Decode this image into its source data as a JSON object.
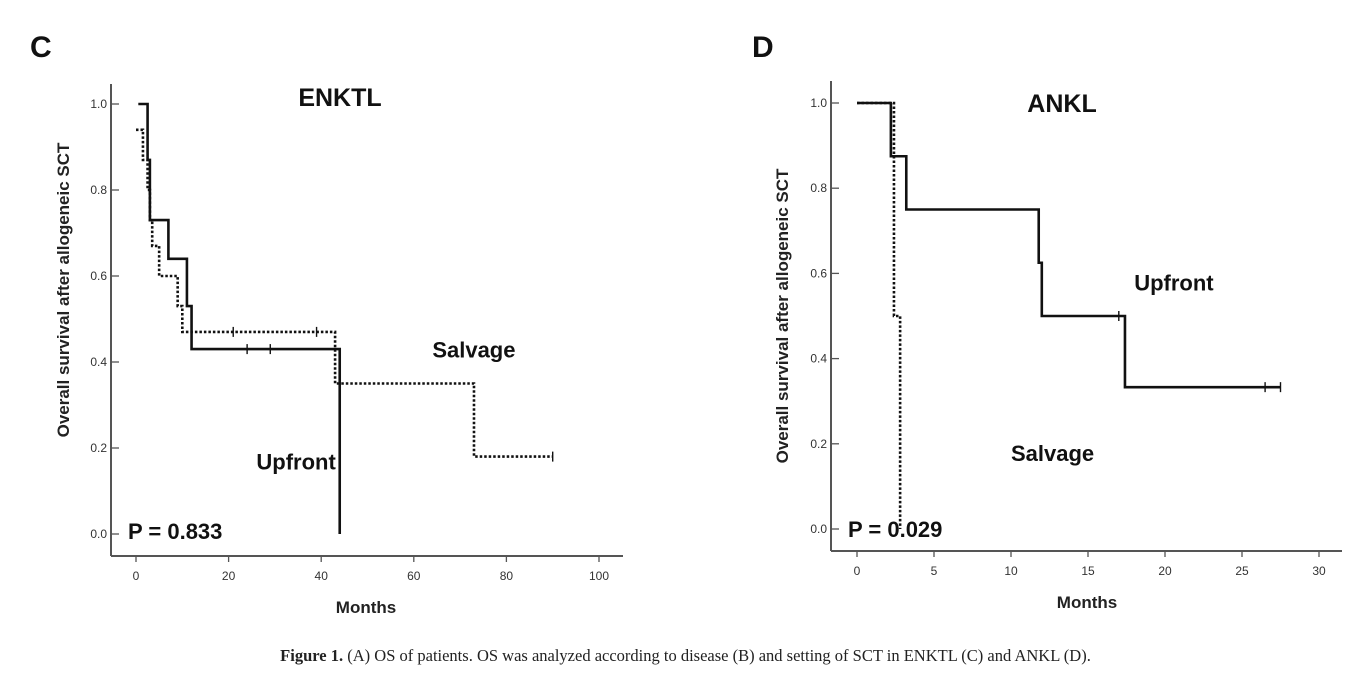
{
  "chart_data": [
    {
      "panel": "C",
      "type": "line",
      "title": "ENKTL",
      "xlabel": "Months",
      "ylabel": "Overall survival after allogeneic SCT",
      "xlim": [
        0,
        100
      ],
      "ylim": [
        0,
        1.0
      ],
      "xticks": [
        0,
        20,
        40,
        60,
        80,
        100
      ],
      "yticks": [
        0.0,
        0.2,
        0.4,
        0.6,
        0.8,
        1.0
      ],
      "x_tick_labels": [
        "0",
        "20",
        "40",
        "60",
        "80",
        "100"
      ],
      "y_tick_labels": [
        "0.0",
        "0.2",
        "0.4",
        "0.6",
        "0.8",
        "1.0"
      ],
      "pvalue": "P = 0.833",
      "grid": false,
      "series": [
        {
          "name": "Upfront",
          "style": "solid",
          "x": [
            0.5,
            2,
            2.5,
            3,
            7,
            11,
            12,
            44,
            44
          ],
          "y": [
            1.0,
            1.0,
            0.87,
            0.73,
            0.64,
            0.53,
            0.43,
            0.43,
            0.0
          ],
          "censored_x": [
            24,
            29
          ],
          "censored_y": [
            0.43,
            0.43
          ]
        },
        {
          "name": "Salvage",
          "style": "dotted",
          "x": [
            0,
            1.5,
            2.5,
            3,
            3.5,
            5,
            6,
            9,
            10,
            43,
            73,
            90
          ],
          "y": [
            0.94,
            0.87,
            0.8,
            0.73,
            0.67,
            0.6,
            0.6,
            0.53,
            0.47,
            0.35,
            0.18,
            0.18
          ],
          "censored_x": [
            21,
            39,
            90
          ],
          "censored_y": [
            0.47,
            0.47,
            0.18
          ]
        }
      ],
      "annotations": [
        {
          "text": "Salvage",
          "x": 64,
          "y": 0.41
        },
        {
          "text": "Upfront",
          "x": 26,
          "y": 0.15
        }
      ]
    },
    {
      "panel": "D",
      "type": "line",
      "title": "ANKL",
      "xlabel": "Months",
      "ylabel": "Overall survival after allogeneic SCT",
      "xlim": [
        0,
        30
      ],
      "ylim": [
        0,
        1.0
      ],
      "xticks": [
        0,
        5,
        10,
        15,
        20,
        25,
        30
      ],
      "yticks": [
        0.0,
        0.2,
        0.4,
        0.6,
        0.8,
        1.0
      ],
      "x_tick_labels": [
        "0",
        "5",
        "10",
        "15",
        "20",
        "25",
        "30"
      ],
      "y_tick_labels": [
        "0.0",
        "0.2",
        "0.4",
        "0.6",
        "0.8",
        "1.0"
      ],
      "pvalue": "P = 0.029",
      "grid": false,
      "series": [
        {
          "name": "Upfront",
          "style": "solid",
          "x": [
            0,
            2.2,
            3.2,
            11.8,
            12.0,
            17.4,
            27.5
          ],
          "y": [
            1.0,
            0.875,
            0.75,
            0.625,
            0.5,
            0.333,
            0.333
          ],
          "censored_x": [
            17.0,
            26.5,
            27.5
          ],
          "censored_y": [
            0.5,
            0.333,
            0.333
          ]
        },
        {
          "name": "Salvage",
          "style": "dotted",
          "x": [
            0,
            2.4,
            2.8
          ],
          "y": [
            1.0,
            0.5,
            0.0
          ],
          "censored_x": [],
          "censored_y": []
        }
      ],
      "annotations": [
        {
          "text": "Upfront",
          "x": 18,
          "y": 0.56
        },
        {
          "text": "Salvage",
          "x": 10,
          "y": 0.16
        }
      ]
    }
  ],
  "caption": {
    "label": "Figure 1.",
    "text": "(A) OS of patients. OS was analyzed according to disease (B) and setting of SCT in ENKTL (C) and ANKL (D)."
  }
}
